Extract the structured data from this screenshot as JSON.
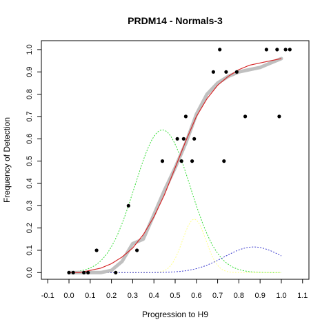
{
  "chart_data": {
    "type": "scatter",
    "title": "PRDM14 - Normals-3",
    "xlabel": "Progression to H9",
    "ylabel": "Frequency of Detection",
    "xlim": [
      -0.13,
      1.13
    ],
    "ylim": [
      -0.03,
      1.04
    ],
    "x_ticks": [
      "-0.1",
      "0.0",
      "0.1",
      "0.2",
      "0.3",
      "0.4",
      "0.5",
      "0.6",
      "0.7",
      "0.8",
      "0.9",
      "1.0",
      "1.1"
    ],
    "y_ticks": [
      "0.0",
      "0.1",
      "0.2",
      "0.3",
      "0.4",
      "0.5",
      "0.6",
      "0.7",
      "0.8",
      "0.9",
      "1.0"
    ],
    "grid": false,
    "colors": {
      "points": "#000000",
      "smoothed": "#c0c0c0",
      "fit": "#d62728",
      "green_curve": "#33dd33",
      "yellow_curve": "#ffff88",
      "blue_curve": "#3333cc"
    },
    "points": [
      [
        0.0,
        0.0
      ],
      [
        0.02,
        0.0
      ],
      [
        0.07,
        0.0
      ],
      [
        0.09,
        0.0
      ],
      [
        0.13,
        0.1
      ],
      [
        0.22,
        0.0
      ],
      [
        0.28,
        0.3
      ],
      [
        0.32,
        0.1
      ],
      [
        0.44,
        0.5
      ],
      [
        0.51,
        0.6
      ],
      [
        0.53,
        0.5
      ],
      [
        0.54,
        0.6
      ],
      [
        0.55,
        0.7
      ],
      [
        0.58,
        0.5
      ],
      [
        0.59,
        0.6
      ],
      [
        0.68,
        0.9
      ],
      [
        0.71,
        1.0
      ],
      [
        0.73,
        0.5
      ],
      [
        0.74,
        0.9
      ],
      [
        0.79,
        0.9
      ],
      [
        0.83,
        0.7
      ],
      [
        0.93,
        1.0
      ],
      [
        0.98,
        1.0
      ],
      [
        0.99,
        0.7
      ],
      [
        1.02,
        1.0
      ],
      [
        1.04,
        1.0
      ]
    ],
    "series": [
      {
        "kind": "smoothed",
        "x": [
          0.0,
          0.05,
          0.1,
          0.15,
          0.2,
          0.25,
          0.3,
          0.35,
          0.4,
          0.45,
          0.5,
          0.55,
          0.6,
          0.65,
          0.7,
          0.75,
          0.8,
          0.85,
          0.9,
          0.95,
          1.0
        ],
        "y": [
          0.0,
          0.0,
          0.0,
          0.0,
          0.01,
          0.05,
          0.13,
          0.15,
          0.26,
          0.37,
          0.47,
          0.58,
          0.71,
          0.8,
          0.85,
          0.88,
          0.9,
          0.91,
          0.92,
          0.94,
          0.96
        ]
      },
      {
        "kind": "fit",
        "x": [
          0.0,
          0.05,
          0.1,
          0.15,
          0.2,
          0.25,
          0.3,
          0.35,
          0.4,
          0.45,
          0.5,
          0.55,
          0.6,
          0.65,
          0.7,
          0.75,
          0.8,
          0.85,
          0.9,
          0.95,
          1.0
        ],
        "y": [
          0.0,
          0.0,
          0.01,
          0.02,
          0.04,
          0.07,
          0.11,
          0.17,
          0.25,
          0.35,
          0.47,
          0.59,
          0.7,
          0.78,
          0.84,
          0.88,
          0.91,
          0.93,
          0.94,
          0.95,
          0.96
        ]
      },
      {
        "kind": "green_curve",
        "center": 0.44,
        "sd": 0.13,
        "peak": 0.64,
        "range": [
          0.0,
          1.0
        ]
      },
      {
        "kind": "yellow_curve",
        "center": 0.59,
        "sd": 0.055,
        "peak": 0.24,
        "range": [
          0.0,
          1.0
        ]
      },
      {
        "kind": "blue_curve",
        "center": 0.87,
        "sd": 0.14,
        "peak": 0.115,
        "range": [
          0.0,
          1.0
        ]
      }
    ]
  }
}
